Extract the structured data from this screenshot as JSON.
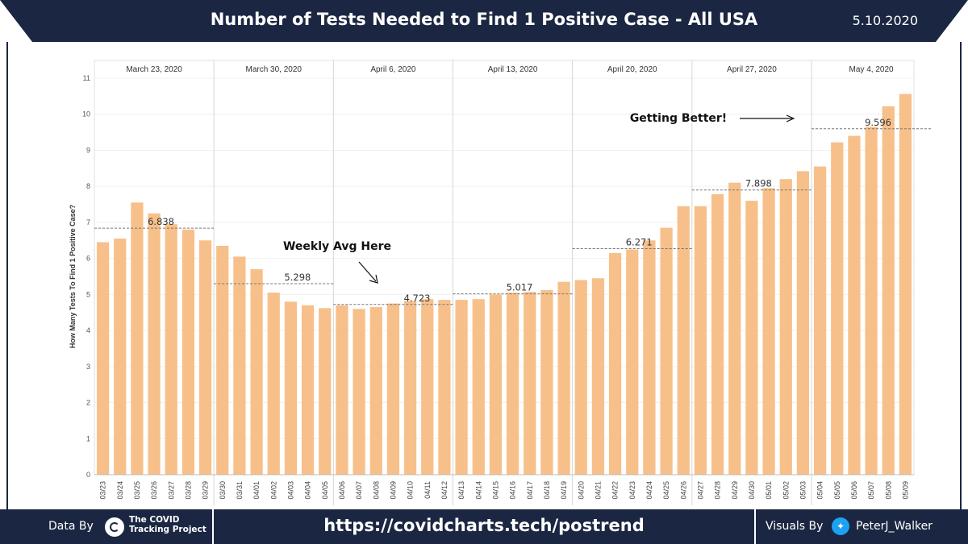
{
  "header": {
    "title": "Number of Tests Needed to Find 1 Positive Case - All USA",
    "date": "5.10.2020"
  },
  "footer": {
    "data_by": "Data By",
    "source_name": "The COVID Tracking Project",
    "source_line1": "The COVID",
    "source_line2": "Tracking Project",
    "url": "https://covidcharts.tech/postrend",
    "visuals_by": "Visuals By",
    "author": "PeterJ_Walker"
  },
  "colors": {
    "bar": "#f7c08a",
    "navy": "#1b2742",
    "twitter": "#1da1f2"
  },
  "chart_data": {
    "type": "bar",
    "ylabel": "How Many Tests To Find 1 Positive Case?",
    "ylim": [
      0,
      11
    ],
    "yticks": [
      0,
      1,
      2,
      3,
      4,
      5,
      6,
      7,
      8,
      9,
      10,
      11
    ],
    "categories": [
      "03/23",
      "03/24",
      "03/25",
      "03/26",
      "03/27",
      "03/28",
      "03/29",
      "03/30",
      "03/31",
      "04/01",
      "04/02",
      "04/03",
      "04/04",
      "04/05",
      "04/06",
      "04/07",
      "04/08",
      "04/09",
      "04/10",
      "04/11",
      "04/12",
      "04/13",
      "04/14",
      "04/15",
      "04/16",
      "04/17",
      "04/18",
      "04/19",
      "04/20",
      "04/21",
      "04/22",
      "04/23",
      "04/24",
      "04/25",
      "04/26",
      "04/27",
      "04/28",
      "04/29",
      "04/30",
      "05/01",
      "05/02",
      "05/03",
      "05/04",
      "05/05",
      "05/06",
      "05/07",
      "05/08",
      "05/09"
    ],
    "values": [
      6.45,
      6.55,
      7.55,
      7.25,
      6.95,
      6.8,
      6.5,
      6.35,
      6.05,
      5.7,
      5.05,
      4.8,
      4.7,
      4.62,
      4.7,
      4.6,
      4.65,
      4.75,
      4.82,
      4.87,
      4.85,
      4.85,
      4.87,
      5.0,
      5.05,
      5.07,
      5.12,
      5.35,
      5.4,
      5.45,
      6.15,
      6.25,
      6.5,
      6.85,
      7.45,
      7.45,
      7.78,
      8.1,
      7.6,
      7.95,
      8.2,
      8.42,
      8.55,
      9.22,
      9.4,
      9.65,
      10.22,
      10.56
    ],
    "weeks": [
      {
        "label": "March 23, 2020",
        "avg": 6.838,
        "avg_label": "6.838"
      },
      {
        "label": "March 30, 2020",
        "avg": 5.298,
        "avg_label": "5.298"
      },
      {
        "label": "April 6, 2020",
        "avg": 4.723,
        "avg_label": "4.723"
      },
      {
        "label": "April 13, 2020",
        "avg": 5.017,
        "avg_label": "5.017"
      },
      {
        "label": "April 20, 2020",
        "avg": 6.271,
        "avg_label": "6.271"
      },
      {
        "label": "April 27, 2020",
        "avg": 7.898,
        "avg_label": "7.898"
      },
      {
        "label": "May 4, 2020",
        "avg": 9.596,
        "avg_label": "9.596"
      }
    ],
    "annotations": [
      {
        "text": "Weekly Avg Here"
      },
      {
        "text": "Getting Better!"
      }
    ]
  }
}
